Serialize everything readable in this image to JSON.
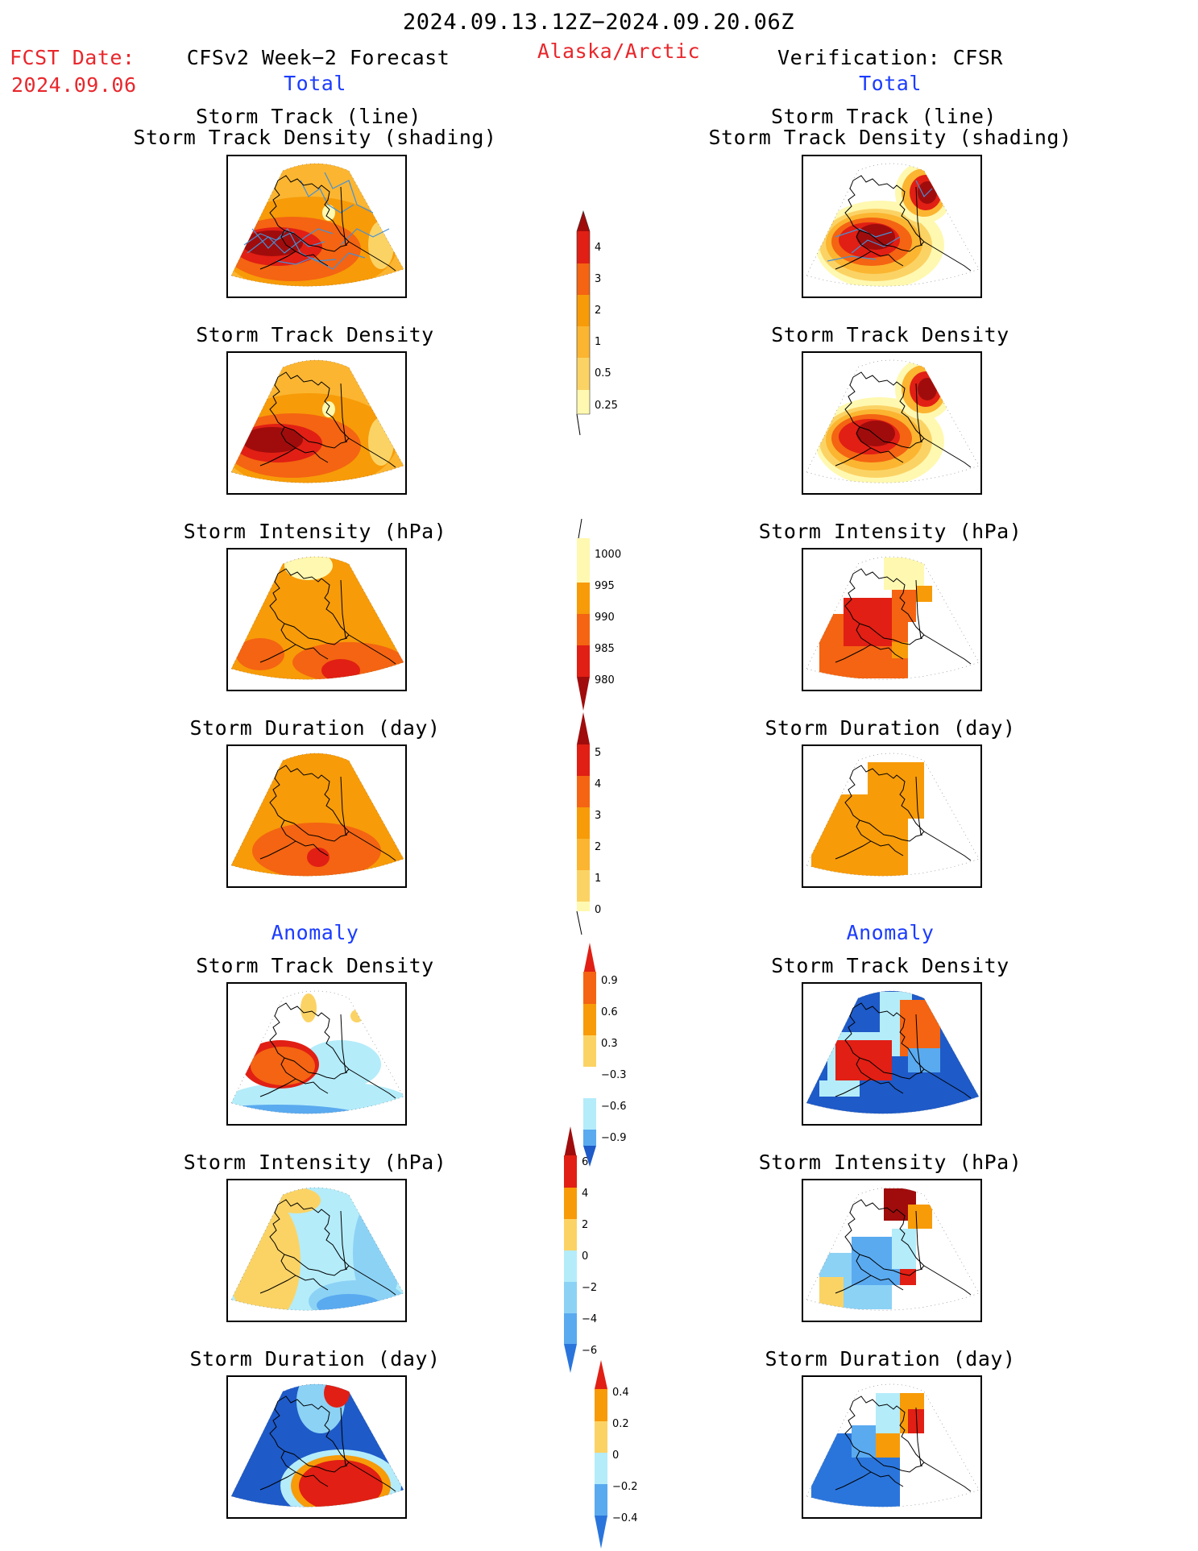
{
  "header": {
    "period": "2024.09.13.12Z−2024.09.20.06Z",
    "fcst_label": "FCST Date:",
    "fcst_date": "2024.09.06",
    "left_title": "CFSv2 Week−2 Forecast",
    "region": "Alaska/Arctic",
    "right_title": "Verification: CFSR",
    "total_label": "Total",
    "anomaly_label": "Anomaly"
  },
  "panel_titles": {
    "track_line": "Storm Track (line)",
    "track_shading": "Storm Track Density (shading)",
    "density": "Storm Track Density",
    "intensity": "Storm Intensity (hPa)",
    "duration": "Storm Duration (day)"
  },
  "colors": {
    "light_yellow": "#fff8b0",
    "yellow": "#fbd365",
    "light_orange": "#fbb531",
    "orange": "#f79b08",
    "dark_orange": "#f46412",
    "red": "#e11f14",
    "dark_red": "#a00c0c",
    "light_blue": "#b4ecfa",
    "sky_blue": "#8cd2f5",
    "mid_blue": "#5aaaf0",
    "blue": "#2a75dc",
    "dark_blue": "#1e5ac8",
    "track_line": "#4690d6"
  },
  "colorbars": [
    {
      "id": "density",
      "labels": [
        "4",
        "3",
        "2",
        "1",
        "0.5",
        "0.25"
      ]
    },
    {
      "id": "intensity",
      "labels": [
        "1000",
        "995",
        "990",
        "985",
        "980"
      ]
    },
    {
      "id": "duration",
      "labels": [
        "5",
        "4",
        "3",
        "2",
        "1",
        "0"
      ]
    },
    {
      "id": "density_anomaly",
      "labels": [
        "0.9",
        "0.6",
        "0.3",
        "−0.3",
        "−0.6",
        "−0.9"
      ]
    },
    {
      "id": "intensity_anomaly",
      "labels": [
        "6",
        "4",
        "2",
        "0",
        "−2",
        "−4",
        "−6"
      ]
    },
    {
      "id": "duration_anomaly",
      "labels": [
        "0.4",
        "0.2",
        "0",
        "−0.2",
        "−0.4"
      ]
    }
  ]
}
